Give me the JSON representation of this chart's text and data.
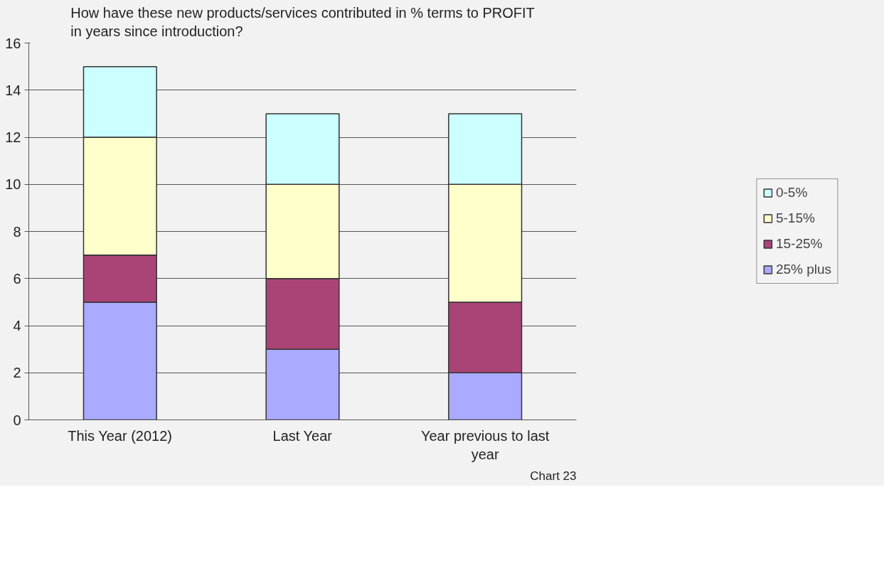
{
  "chart_data": {
    "type": "bar",
    "title": "How have these new products/services contributed in % terms to PROFIT in years since introduction?",
    "categories": [
      "This Year (2012)",
      "Last Year",
      "Year previous to last year"
    ],
    "stacked": true,
    "series": [
      {
        "name": "25% plus",
        "color": "#aaaaff",
        "values": [
          5,
          3,
          2
        ]
      },
      {
        "name": "15-25%",
        "color": "#aa4477",
        "values": [
          2,
          3,
          3
        ]
      },
      {
        "name": "5-15%",
        "color": "#ffffcc",
        "values": [
          5,
          4,
          5
        ]
      },
      {
        "name": "0-5%",
        "color": "#ccffff",
        "values": [
          3,
          3,
          3
        ]
      }
    ],
    "ylim": [
      0,
      16
    ],
    "yticks": [
      0,
      2,
      4,
      6,
      8,
      10,
      12,
      14,
      16
    ],
    "grid": "y",
    "legend": "right",
    "annotations": [
      "Chart 23"
    ]
  }
}
